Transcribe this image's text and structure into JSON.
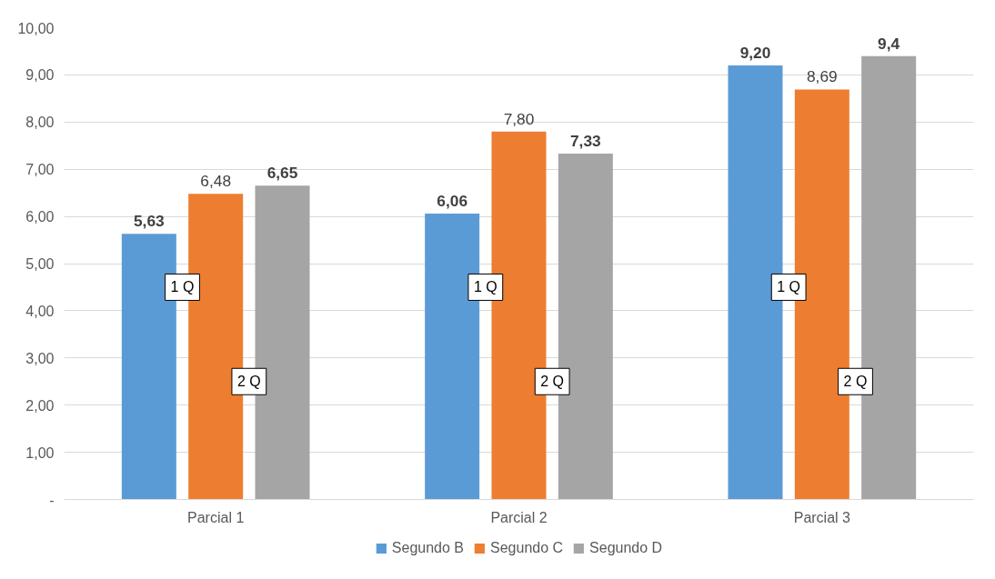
{
  "chart_data": {
    "type": "bar",
    "categories": [
      "Parcial 1",
      "Parcial 2",
      "Parcial 3"
    ],
    "series": [
      {
        "name": "Segundo B",
        "color": "#5b9bd5",
        "values": [
          5.63,
          6.06,
          9.2
        ],
        "value_labels": [
          "5,63",
          "6,06",
          "9,20"
        ]
      },
      {
        "name": "Segundo C",
        "color": "#ed7d31",
        "values": [
          6.48,
          7.8,
          8.69
        ],
        "value_labels": [
          "6,48",
          "7,80",
          "8,69"
        ]
      },
      {
        "name": "Segundo D",
        "color": "#a5a5a5",
        "values": [
          6.65,
          7.33,
          9.4
        ],
        "value_labels": [
          "6,65",
          "7,33",
          "9,4"
        ]
      }
    ],
    "ylim": [
      0,
      10
    ],
    "yticks": [
      {
        "value": 0,
        "label": "-"
      },
      {
        "value": 1,
        "label": "1,00"
      },
      {
        "value": 2,
        "label": "2,00"
      },
      {
        "value": 3,
        "label": "3,00"
      },
      {
        "value": 4,
        "label": "4,00"
      },
      {
        "value": 5,
        "label": "5,00"
      },
      {
        "value": 6,
        "label": "6,00"
      },
      {
        "value": 7,
        "label": "7,00"
      },
      {
        "value": 8,
        "label": "8,00"
      },
      {
        "value": 9,
        "label": "9,00"
      },
      {
        "value": 10,
        "label": "10,00"
      }
    ],
    "grid": "y",
    "legend": "bottom",
    "annotations": [
      "1 Q",
      "2 Q",
      "1 Q",
      "2 Q",
      "1 Q",
      "2 Q"
    ]
  }
}
